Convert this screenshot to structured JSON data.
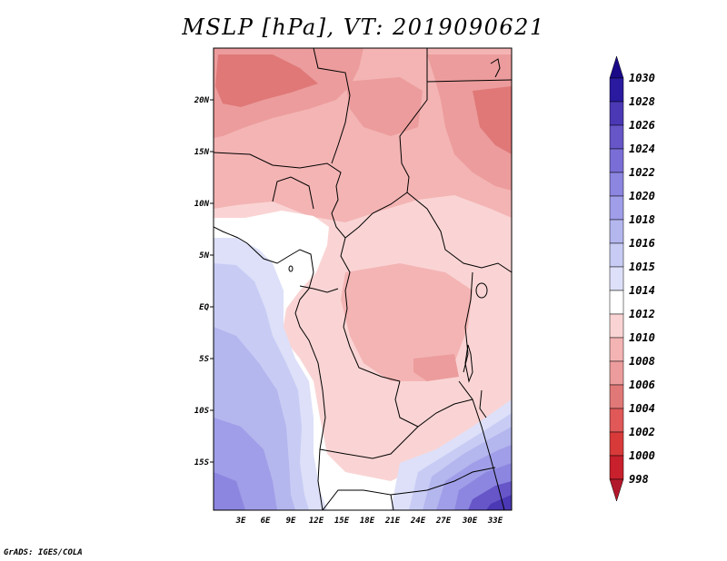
{
  "title": "MSLP [hPa], VT: 2019090621",
  "credit": "GrADS: IGES/COLA",
  "map": {
    "lat_labels": [
      "20N",
      "15N",
      "10N",
      "5N",
      "EQ",
      "5S",
      "10S",
      "15S"
    ],
    "lon_labels": [
      "3E",
      "6E",
      "9E",
      "12E",
      "15E",
      "18E",
      "21E",
      "24E",
      "27E",
      "30E",
      "33E"
    ]
  },
  "colorbar": {
    "levels": [
      "998",
      "1000",
      "1002",
      "1004",
      "1006",
      "1008",
      "1010",
      "1012",
      "1014",
      "1015",
      "1016",
      "1018",
      "1020",
      "1022",
      "1024",
      "1026",
      "1028",
      "1030"
    ],
    "colors": [
      "#b2182b",
      "#c8202c",
      "#d83a3a",
      "#e05858",
      "#e07878",
      "#ec9c9c",
      "#f4b4b4",
      "#fad4d4",
      "#ffffff",
      "#dde0f8",
      "#c8ccf4",
      "#b4b6ee",
      "#a09ee8",
      "#8c86e0",
      "#7a6ed6",
      "#6656c8",
      "#4a38b4",
      "#2a1aa0",
      "#1a0a88"
    ]
  }
}
